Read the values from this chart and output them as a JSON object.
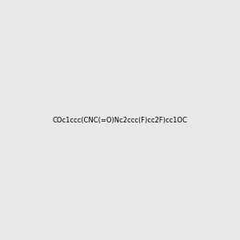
{
  "smiles": "COc1ccc(CNC(=O)Nc2ccc(F)cc2F)cc1OC",
  "image_size": 300,
  "background_color": "#e8e8e8",
  "bond_color": "#2d6b4a",
  "atom_colors": {
    "O": "#ff0000",
    "N": "#0000cc",
    "F": "#cc00cc",
    "C": "#000000"
  }
}
